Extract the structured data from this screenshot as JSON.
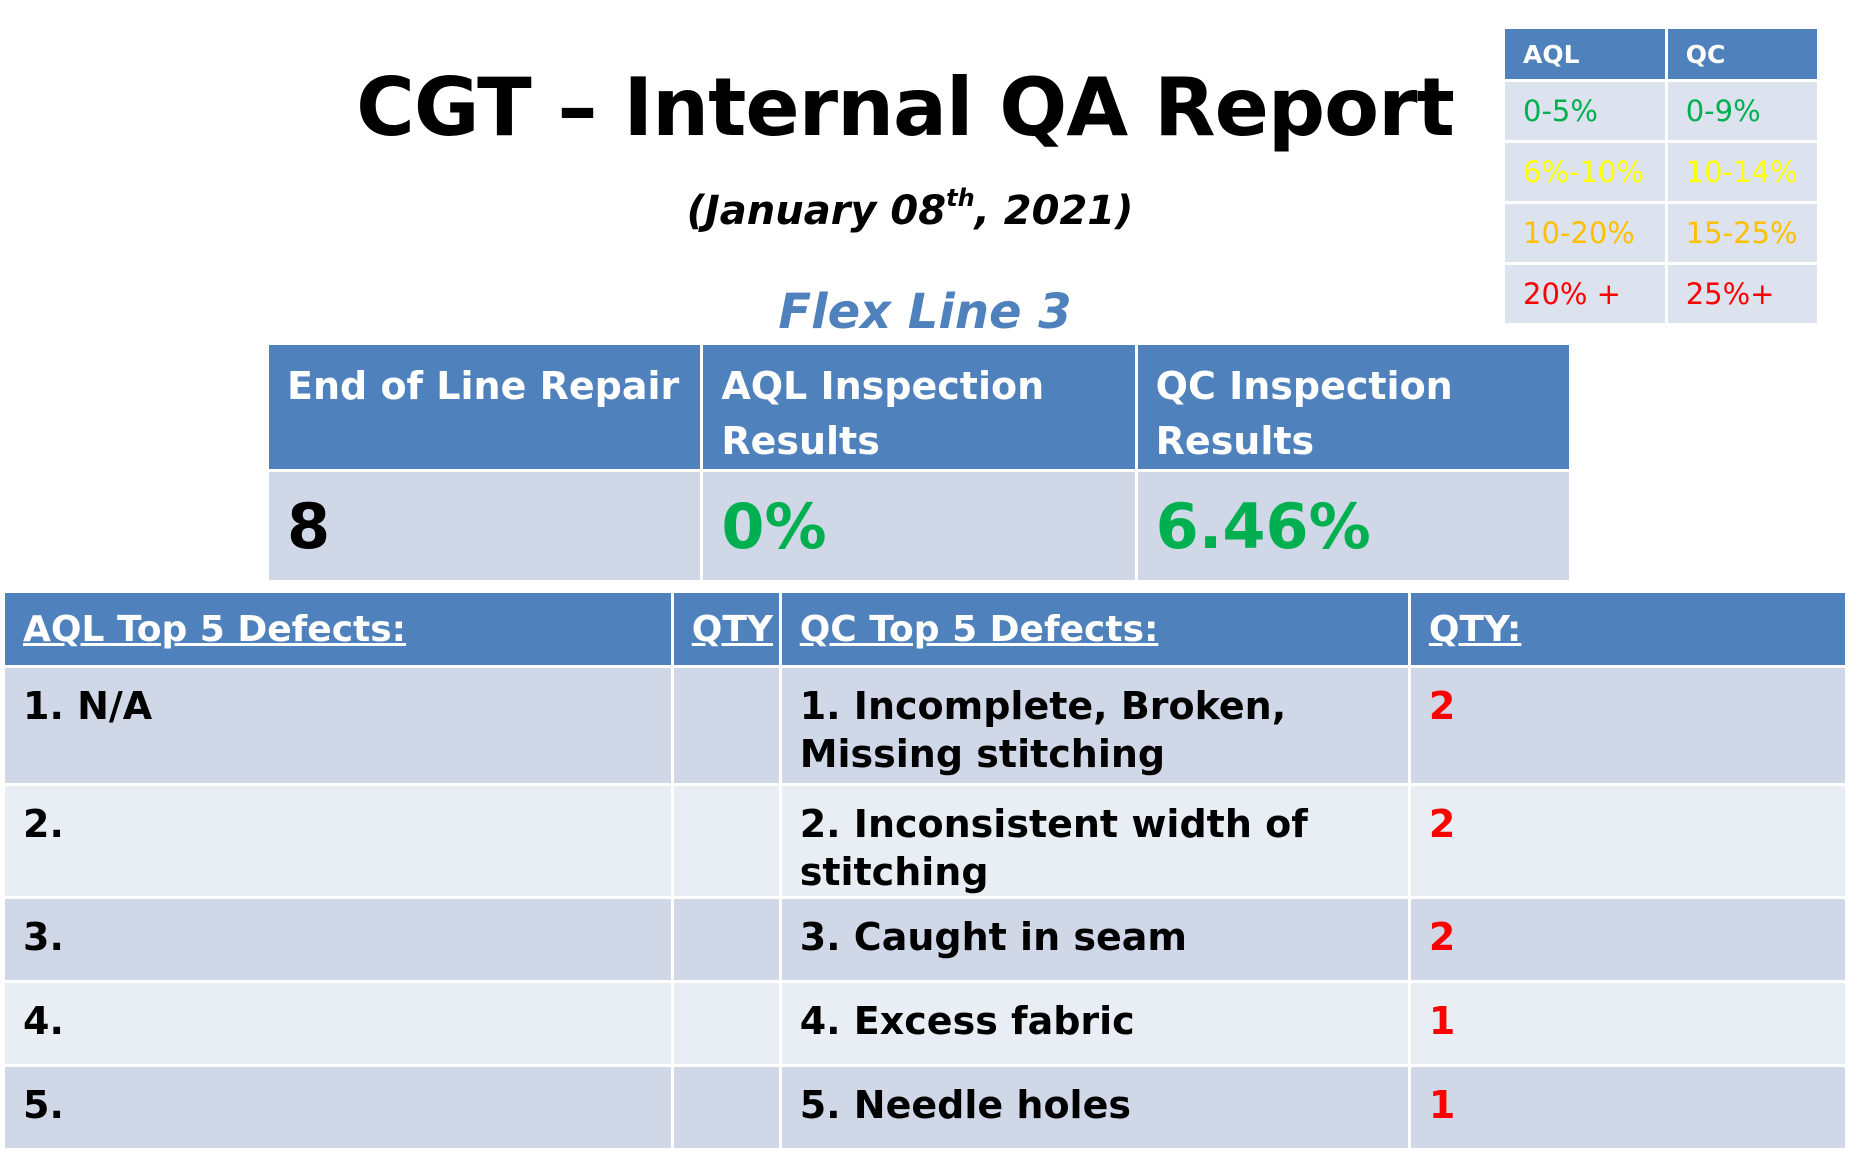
{
  "header": {
    "title": "CGT – Internal QA Report",
    "date_open": "(January 08",
    "date_sup": "th",
    "date_close": ", 2021)",
    "section": "Flex Line 3"
  },
  "legend": {
    "headers": [
      "AQL",
      "QC"
    ],
    "rows": [
      {
        "aql": "0-5%",
        "qc": "0-9%",
        "color": "#00b050"
      },
      {
        "aql": "6%-10%",
        "qc": "10-14%",
        "color": "#ffff00"
      },
      {
        "aql": "10-20%",
        "qc": "15-25%",
        "color": "#ffc000"
      },
      {
        "aql": "20% +",
        "qc": "25%+",
        "color": "#ff0000"
      }
    ]
  },
  "summary": {
    "headers": [
      "End of Line Repair",
      "AQL Inspection Results",
      "QC Inspection Results"
    ],
    "values": [
      {
        "text": "8",
        "color": "#000000"
      },
      {
        "text": "0%",
        "color": "#00b050"
      },
      {
        "text": "6.46%",
        "color": "#00b050"
      }
    ]
  },
  "defects": {
    "headers": [
      "AQL Top 5 Defects:",
      "QTY",
      "QC Top 5 Defects:",
      "QTY:"
    ],
    "rows": [
      {
        "aql": "1. N/A",
        "aql_qty": "",
        "qc": "1. Incomplete, Broken, Missing stitching",
        "qc_qty": "2"
      },
      {
        "aql": "2.",
        "aql_qty": "",
        "qc": "2. Inconsistent width of stitching",
        "qc_qty": "2"
      },
      {
        "aql": "3.",
        "aql_qty": "",
        "qc": "3. Caught in seam",
        "qc_qty": "2"
      },
      {
        "aql": "4.",
        "aql_qty": "",
        "qc": "4. Excess fabric",
        "qc_qty": "1"
      },
      {
        "aql": "5.",
        "aql_qty": "",
        "qc": "5. Needle holes",
        "qc_qty": "1"
      }
    ],
    "qty_color": "#ff0000"
  }
}
